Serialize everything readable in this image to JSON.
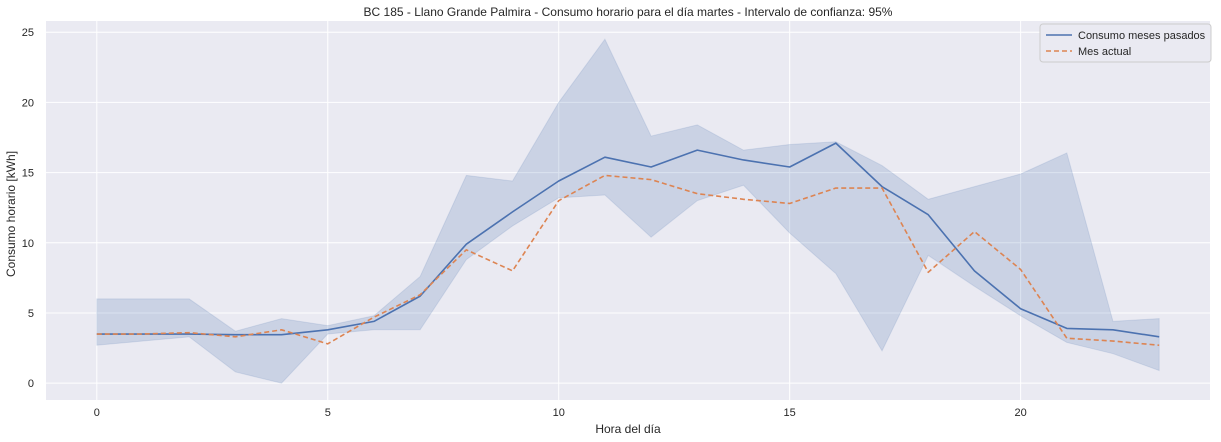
{
  "chart_data": {
    "type": "line",
    "title": "BC 185 - Llano Grande Palmira - Consumo horario para el día martes - Intervalo de confianza: 95%",
    "xlabel": "Hora del día",
    "ylabel": "Consumo horario [kWh]",
    "xlim": [
      -1.1,
      24.1
    ],
    "ylim": [
      -1.2,
      25.8
    ],
    "xticks": [
      0,
      5,
      10,
      15,
      20
    ],
    "yticks": [
      0,
      5,
      10,
      15,
      20,
      25
    ],
    "grid": true,
    "legend_position": "top-right",
    "colors": {
      "background": "#eaeaf2",
      "grid": "#ffffff",
      "band": "#4c72b0",
      "past": "#4c72b0",
      "current": "#dd8452"
    },
    "x": [
      0,
      1,
      2,
      3,
      4,
      5,
      6,
      7,
      8,
      9,
      10,
      11,
      12,
      13,
      14,
      15,
      16,
      17,
      18,
      19,
      20,
      21,
      22,
      23
    ],
    "confidence_band": {
      "name": "Intervalo de confianza 95%",
      "lower": [
        2.7,
        3.0,
        3.3,
        0.8,
        0.0,
        3.5,
        3.8,
        3.8,
        8.8,
        11.2,
        13.2,
        13.4,
        10.4,
        13.0,
        14.1,
        10.7,
        7.8,
        2.3,
        9.1,
        6.9,
        4.8,
        2.9,
        2.1,
        0.9
      ],
      "upper": [
        6.0,
        6.0,
        6.0,
        3.7,
        4.6,
        4.1,
        4.8,
        7.6,
        14.8,
        14.4,
        20.0,
        24.5,
        17.6,
        18.4,
        16.6,
        17.0,
        17.2,
        15.5,
        13.1,
        14.0,
        14.9,
        16.4,
        4.4,
        4.6
      ]
    },
    "series": [
      {
        "name": "Consumo meses pasados",
        "style": "solid",
        "values": [
          3.5,
          3.5,
          3.5,
          3.45,
          3.45,
          3.8,
          4.4,
          6.2,
          9.9,
          12.2,
          14.4,
          16.1,
          15.4,
          16.6,
          15.9,
          15.4,
          17.1,
          14.0,
          12.0,
          8.0,
          5.3,
          3.9,
          3.8,
          3.3
        ]
      },
      {
        "name": "Mes actual",
        "style": "dashed",
        "values": [
          3.5,
          3.5,
          3.6,
          3.3,
          3.8,
          2.8,
          4.7,
          6.3,
          9.5,
          8.0,
          13.0,
          14.8,
          14.5,
          13.5,
          13.1,
          12.8,
          13.9,
          13.9,
          7.9,
          10.8,
          8.1,
          3.2,
          3.0,
          2.7
        ]
      }
    ]
  }
}
